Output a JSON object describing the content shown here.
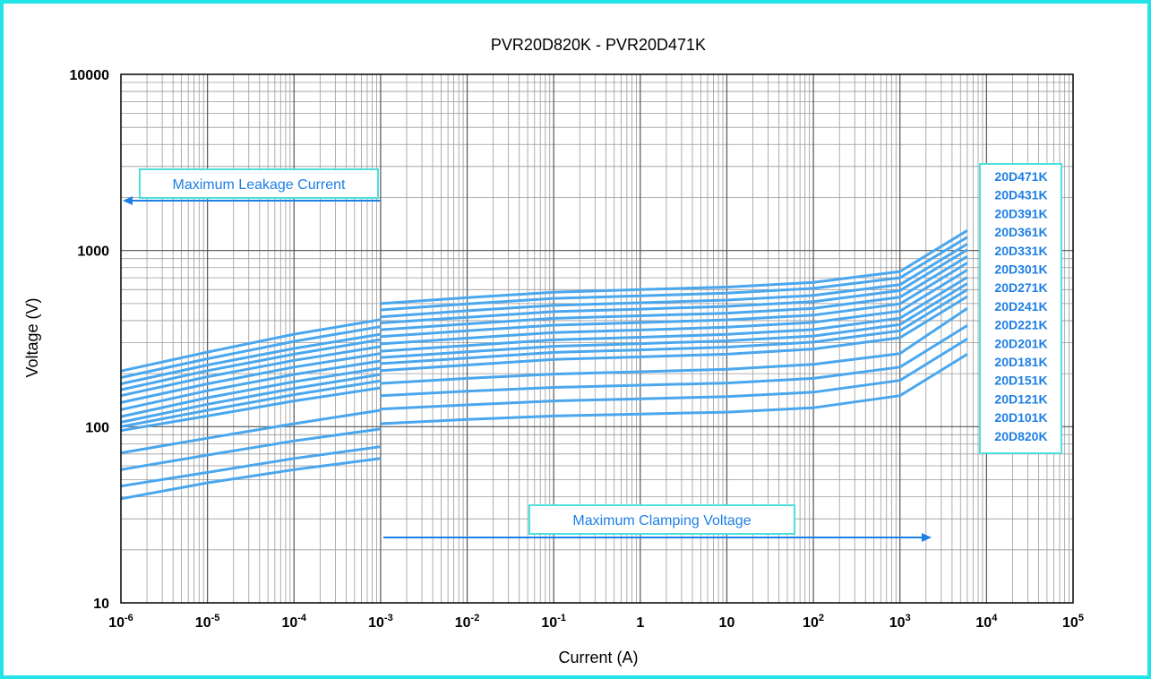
{
  "chart_data": {
    "type": "line",
    "title": "PVR20D820K - PVR20D471K",
    "xlabel": "Current (A)",
    "ylabel": "Voltage (V)",
    "x_scale": "log",
    "y_scale": "log",
    "xlim": [
      1e-06,
      100000
    ],
    "ylim": [
      10,
      10000
    ],
    "grid": true,
    "legend_position": "right",
    "x_ticks": [
      {
        "base": "10",
        "exp": "-6"
      },
      {
        "base": "10",
        "exp": "-5"
      },
      {
        "base": "10",
        "exp": "-4"
      },
      {
        "base": "10",
        "exp": "-3"
      },
      {
        "base": "10",
        "exp": "-2"
      },
      {
        "base": "10",
        "exp": "-1"
      },
      {
        "base": "1",
        "exp": ""
      },
      {
        "base": "10",
        "exp": ""
      },
      {
        "base": "10",
        "exp": "2"
      },
      {
        "base": "10",
        "exp": "3"
      },
      {
        "base": "10",
        "exp": "4"
      },
      {
        "base": "10",
        "exp": "5"
      }
    ],
    "y_ticks": [
      "10",
      "100",
      "1000",
      "10000"
    ],
    "annotations": {
      "leakage": "Maximum Leakage Current",
      "clamping": "Maximum Clamping Voltage"
    },
    "x": [
      1e-06,
      1e-05,
      0.0001,
      0.001,
      0.001,
      0.01,
      0.1,
      1,
      10,
      100,
      1000,
      6000
    ],
    "series": [
      {
        "name": "20D471K",
        "values": [
          207,
          265,
          335,
          405,
          500,
          540,
          580,
          600,
          620,
          660,
          760,
          1300
        ]
      },
      {
        "name": "20D431K",
        "values": [
          190,
          243,
          305,
          370,
          460,
          498,
          535,
          553,
          573,
          610,
          700,
          1190
        ]
      },
      {
        "name": "20D391K",
        "values": [
          175,
          224,
          278,
          335,
          420,
          455,
          488,
          505,
          523,
          556,
          640,
          1090
        ]
      },
      {
        "name": "20D361K",
        "values": [
          162,
          208,
          258,
          312,
          388,
          418,
          450,
          465,
          482,
          513,
          592,
          1010
        ]
      },
      {
        "name": "20D331K",
        "values": [
          150,
          192,
          238,
          285,
          355,
          383,
          412,
          426,
          441,
          470,
          543,
          925
        ]
      },
      {
        "name": "20D301K",
        "values": [
          137,
          175,
          218,
          260,
          325,
          350,
          377,
          390,
          404,
          430,
          498,
          850
        ]
      },
      {
        "name": "20D271K",
        "values": [
          125,
          160,
          198,
          236,
          295,
          318,
          342,
          354,
          367,
          391,
          453,
          775
        ]
      },
      {
        "name": "20D241K",
        "values": [
          114,
          146,
          180,
          215,
          268,
          289,
          311,
          322,
          334,
          356,
          413,
          705
        ]
      },
      {
        "name": "20D221K",
        "values": [
          106,
          134,
          165,
          198,
          247,
          266,
          286,
          296,
          307,
          327,
          380,
          650
        ]
      },
      {
        "name": "20D201K",
        "values": [
          100,
          124,
          152,
          182,
          228,
          245,
          264,
          273,
          283,
          302,
          350,
          600
        ]
      },
      {
        "name": "20D181K",
        "values": [
          95,
          115,
          140,
          166,
          208,
          224,
          241,
          249,
          258,
          276,
          320,
          548
        ]
      },
      {
        "name": "20D151K",
        "values": [
          71,
          86,
          104,
          124,
          176,
          188,
          199,
          205,
          212,
          226,
          260,
          470
        ]
      },
      {
        "name": "20D121K",
        "values": [
          57,
          69,
          83,
          97,
          150,
          159,
          167,
          172,
          177,
          188,
          218,
          375
        ]
      },
      {
        "name": "20D101K",
        "values": [
          46,
          55,
          66,
          77,
          126,
          133,
          140,
          144,
          148,
          157,
          183,
          315
        ]
      },
      {
        "name": "20D820K",
        "values": [
          39,
          48,
          57,
          66,
          104,
          110,
          115,
          118,
          121,
          128,
          150,
          258
        ]
      }
    ]
  },
  "colors": {
    "line": "#4aa7ee",
    "text_accent": "#1e7fe6",
    "box_border": "#4fe0de",
    "frame": "#22e3e8",
    "grid": "#9a9a9a"
  }
}
